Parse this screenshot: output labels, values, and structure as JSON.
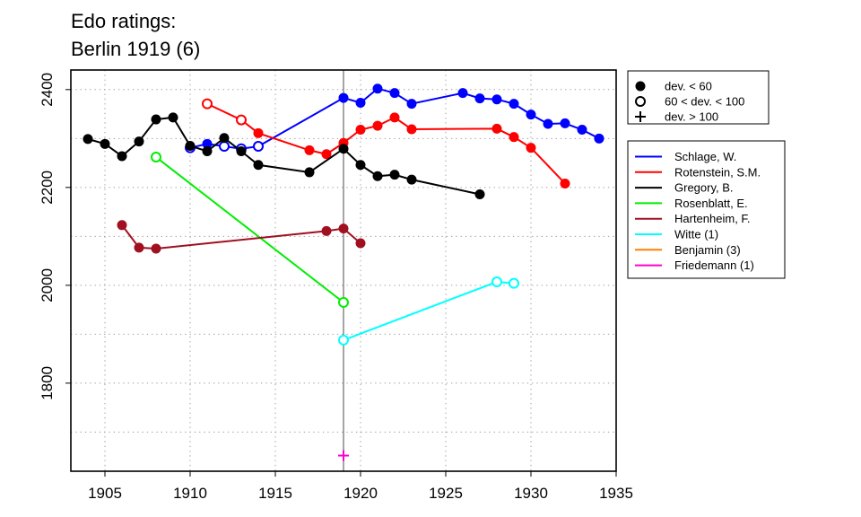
{
  "title_line1": "Edo ratings:",
  "title_line2": "Berlin 1919 (6)",
  "chart_data": {
    "type": "line",
    "xlim": [
      1903,
      1935
    ],
    "ylim": [
      1620,
      2440
    ],
    "x_ticks": [
      1905,
      1910,
      1915,
      1920,
      1925,
      1930,
      1935
    ],
    "y_ticks": [
      1800,
      2000,
      2200,
      2400
    ],
    "y_minor_ticks": [
      1700,
      1900,
      2100,
      2300
    ],
    "x_grid": [
      1905,
      1910,
      1915,
      1920,
      1925,
      1930
    ],
    "event_year": 1919,
    "grid": true,
    "markers_legend": [
      {
        "symbol": "filled-circle",
        "label": "dev. < 60"
      },
      {
        "symbol": "open-circle",
        "label": "60 < dev. < 100"
      },
      {
        "symbol": "plus",
        "label": "dev. > 100"
      }
    ],
    "series": [
      {
        "name": "Schlage, W.",
        "color": "#0000ff",
        "points": [
          [
            1910,
            2281,
            "open"
          ],
          [
            1911,
            2289,
            "filled"
          ],
          [
            1912,
            2284,
            "open"
          ],
          [
            1913,
            2279,
            "open"
          ],
          [
            1914,
            2284,
            "open"
          ],
          [
            1919,
            2383,
            "filled"
          ],
          [
            1920,
            2373,
            "filled"
          ],
          [
            1921,
            2402,
            "filled"
          ],
          [
            1922,
            2393,
            "filled"
          ],
          [
            1923,
            2371,
            "filled"
          ],
          [
            1926,
            2393,
            "filled"
          ],
          [
            1927,
            2382,
            "filled"
          ],
          [
            1928,
            2380,
            "filled"
          ],
          [
            1929,
            2371,
            "filled"
          ],
          [
            1930,
            2349,
            "filled"
          ],
          [
            1931,
            2330,
            "filled"
          ],
          [
            1932,
            2331,
            "filled"
          ],
          [
            1933,
            2318,
            "filled"
          ],
          [
            1934,
            2300,
            "filled"
          ]
        ]
      },
      {
        "name": "Rotenstein, S.M.",
        "color": "#ff0000",
        "points": [
          [
            1911,
            2371,
            "open"
          ],
          [
            1913,
            2338,
            "open"
          ],
          [
            1914,
            2311,
            "filled"
          ],
          [
            1917,
            2276,
            "filled"
          ],
          [
            1918,
            2268,
            "filled"
          ],
          [
            1919,
            2291,
            "filled"
          ],
          [
            1920,
            2318,
            "filled"
          ],
          [
            1921,
            2326,
            "filled"
          ],
          [
            1922,
            2343,
            "filled"
          ],
          [
            1923,
            2319,
            "filled"
          ],
          [
            1928,
            2320,
            "filled"
          ],
          [
            1929,
            2303,
            "filled"
          ],
          [
            1930,
            2281,
            "filled"
          ],
          [
            1932,
            2208,
            "filled"
          ]
        ]
      },
      {
        "name": "Gregory, B.",
        "color": "#000000",
        "points": [
          [
            1904,
            2299,
            "filled"
          ],
          [
            1905,
            2289,
            "filled"
          ],
          [
            1906,
            2264,
            "filled"
          ],
          [
            1907,
            2294,
            "filled"
          ],
          [
            1908,
            2339,
            "filled"
          ],
          [
            1909,
            2343,
            "filled"
          ],
          [
            1910,
            2285,
            "filled"
          ],
          [
            1911,
            2274,
            "filled"
          ],
          [
            1912,
            2301,
            "filled"
          ],
          [
            1913,
            2274,
            "filled"
          ],
          [
            1914,
            2246,
            "filled"
          ],
          [
            1917,
            2231,
            "filled"
          ],
          [
            1919,
            2279,
            "filled"
          ],
          [
            1920,
            2246,
            "filled"
          ],
          [
            1921,
            2223,
            "filled"
          ],
          [
            1922,
            2226,
            "filled"
          ],
          [
            1923,
            2216,
            "filled"
          ],
          [
            1927,
            2186,
            "filled"
          ]
        ]
      },
      {
        "name": "Rosenblatt, E.",
        "color": "#00ee00",
        "points": [
          [
            1908,
            2262,
            "open"
          ],
          [
            1919,
            1965,
            "open"
          ]
        ]
      },
      {
        "name": "Hartenheim, F.",
        "color": "#a01020",
        "points": [
          [
            1906,
            2123,
            "filled"
          ],
          [
            1907,
            2077,
            "filled"
          ],
          [
            1908,
            2075,
            "filled"
          ],
          [
            1918,
            2111,
            "filled"
          ],
          [
            1919,
            2116,
            "filled"
          ],
          [
            1920,
            2086,
            "filled"
          ]
        ]
      },
      {
        "name": "Witte (1)",
        "color": "#00ffff",
        "points": [
          [
            1919,
            1888,
            "open"
          ],
          [
            1928,
            2007,
            "open"
          ],
          [
            1929,
            2004,
            "open"
          ]
        ]
      },
      {
        "name": "Benjamin (3)",
        "color": "#ff8000",
        "points": []
      },
      {
        "name": "Friedemann (1)",
        "color": "#ff00cc",
        "points": [
          [
            1919,
            1652,
            "plus"
          ]
        ]
      }
    ]
  }
}
